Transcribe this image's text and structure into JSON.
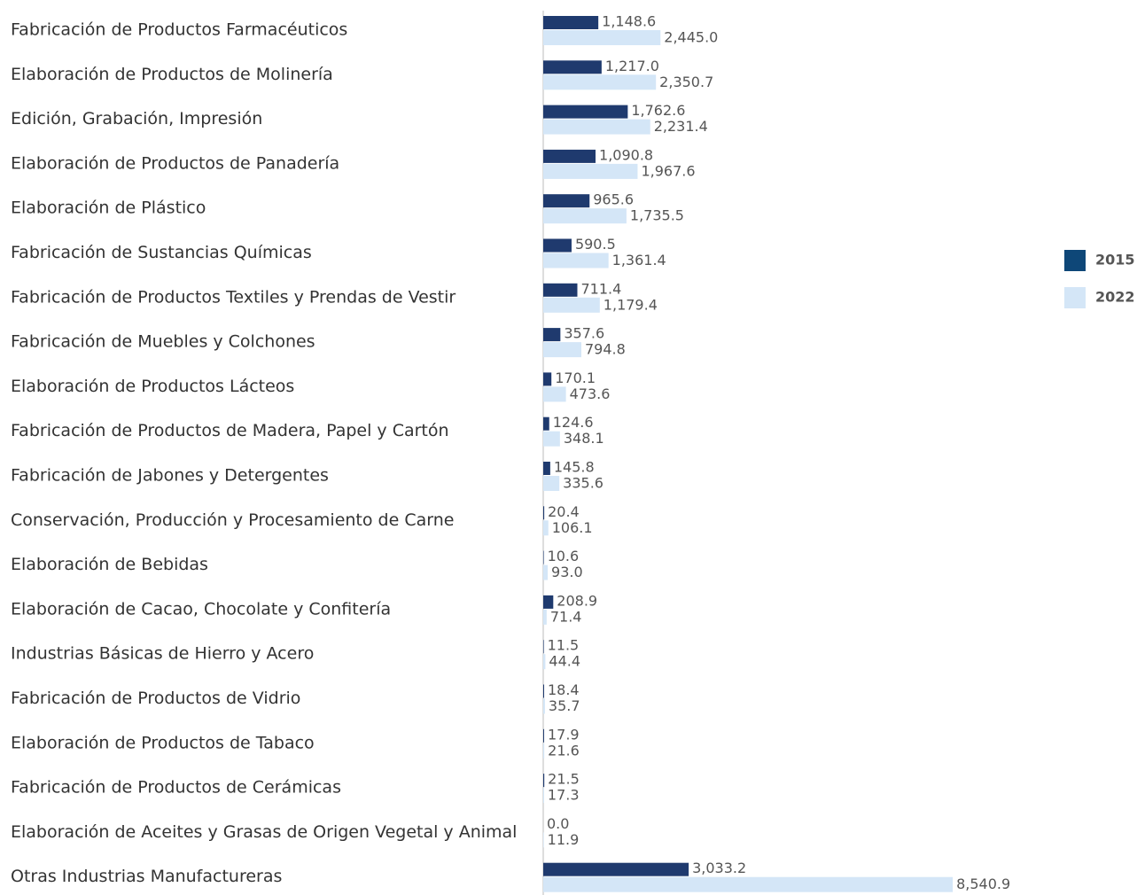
{
  "chart_data": {
    "type": "bar",
    "orientation": "horizontal",
    "categories": [
      "Fabricación de Productos Farmacéuticos",
      "Elaboración de Productos de Molinería",
      "Edición, Grabación, Impresión",
      "Elaboración de Productos de Panadería",
      "Elaboración de Plástico",
      "Fabricación de Sustancias Químicas",
      "Fabricación de Productos Textiles y Prendas de Vestir",
      "Fabricación de Muebles y Colchones",
      "Elaboración de Productos Lácteos",
      "Fabricación de Productos de Madera, Papel y Cartón",
      "Fabricación de Jabones y Detergentes",
      "Conservación, Producción y Procesamiento de Carne",
      "Elaboración de Bebidas",
      "Elaboración de Cacao, Chocolate y Confitería",
      "Industrias Básicas de Hierro y Acero",
      "Fabricación de Productos de Vidrio",
      "Elaboración de Productos de Tabaco",
      "Fabricación de Productos de Cerámicas",
      "Elaboración de Aceites y Grasas de Origen Vegetal y Animal",
      "Otras Industrias Manufactureras"
    ],
    "series": [
      {
        "name": "2015",
        "color": "#1f3a6e",
        "legend_color": "#0e4778",
        "values": [
          1148.6,
          1217.0,
          1762.6,
          1090.8,
          965.6,
          590.5,
          711.4,
          357.6,
          170.1,
          124.6,
          145.8,
          20.4,
          10.6,
          208.9,
          11.5,
          18.4,
          17.9,
          21.5,
          0.0,
          3033.2
        ],
        "value_labels": [
          "1,148.6",
          "1,217.0",
          "1,762.6",
          "1,090.8",
          "965.6",
          "590.5",
          "711.4",
          "357.6",
          "170.1",
          "124.6",
          "145.8",
          "20.4",
          "10.6",
          "208.9",
          "11.5",
          "18.4",
          "17.9",
          "21.5",
          "0.0",
          "3,033.2"
        ]
      },
      {
        "name": "2022",
        "color": "#d4e6f7",
        "legend_color": "#d4e6f7",
        "values": [
          2445.0,
          2350.7,
          2231.4,
          1967.6,
          1735.5,
          1361.4,
          1179.4,
          794.8,
          473.6,
          348.1,
          335.6,
          106.1,
          93.0,
          71.4,
          44.4,
          35.7,
          21.6,
          17.3,
          11.9,
          8540.9
        ],
        "value_labels": [
          "2,445.0",
          "2,350.7",
          "2,231.4",
          "1,967.6",
          "1,735.5",
          "1,361.4",
          "1,179.4",
          "794.8",
          "473.6",
          "348.1",
          "335.6",
          "106.1",
          "93.0",
          "71.4",
          "44.4",
          "35.7",
          "21.6",
          "17.3",
          "11.9",
          "8,540.9"
        ]
      }
    ],
    "xlim": [
      0,
      9500
    ],
    "legend": "right"
  }
}
